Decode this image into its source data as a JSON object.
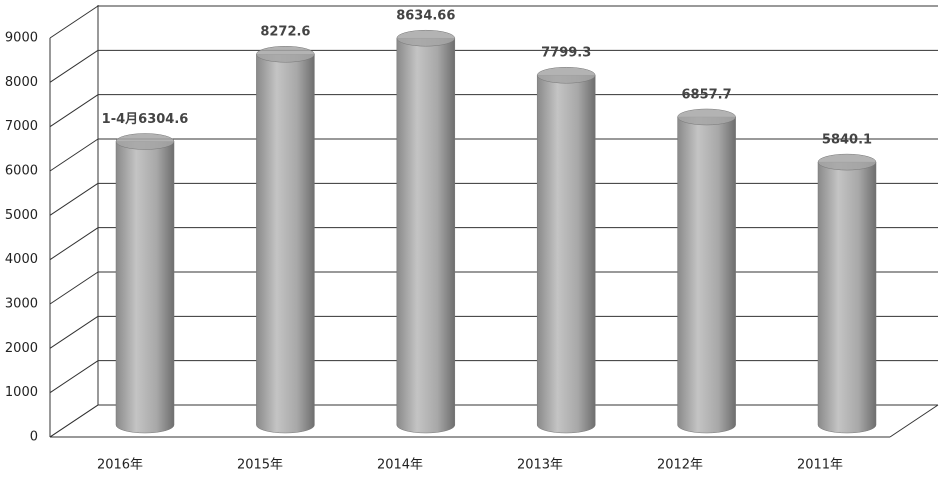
{
  "chart_data": {
    "type": "bar",
    "categories": [
      "2016年",
      "2015年",
      "2014年",
      "2013年",
      "2012年",
      "2011年"
    ],
    "values": [
      6304.6,
      8272.6,
      8634.66,
      7799.3,
      6857.7,
      5840.1
    ],
    "value_labels": [
      "1-4月6304.6",
      "8272.6",
      "8634.66",
      "7799.3",
      "6857.7",
      "5840.1"
    ],
    "color": "#a6a6a6",
    "ylim": [
      0,
      9000
    ],
    "yticks": [
      0,
      1000,
      2000,
      3000,
      4000,
      5000,
      6000,
      7000,
      8000,
      9000
    ],
    "grid": true
  }
}
